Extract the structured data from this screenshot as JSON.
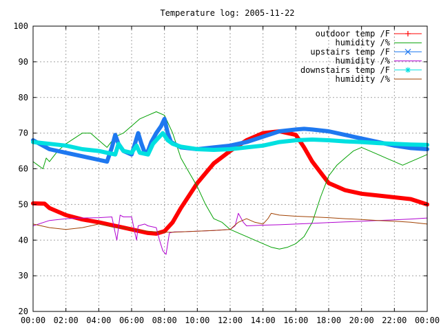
{
  "chart_data": {
    "type": "line",
    "title": "Temperature log: 2005-11-22",
    "xlabel": "",
    "ylabel": "",
    "x_unit": "hour",
    "xlim": [
      0,
      24
    ],
    "ylim": [
      20,
      100
    ],
    "grid": true,
    "legend_position": "top-right",
    "x_ticks": [
      0,
      2,
      4,
      6,
      8,
      10,
      12,
      14,
      16,
      18,
      20,
      22,
      24
    ],
    "x_tick_labels": [
      "00:00",
      "02:00",
      "04:00",
      "06:00",
      "08:00",
      "10:00",
      "12:00",
      "14:00",
      "16:00",
      "18:00",
      "20:00",
      "22:00",
      "00:00"
    ],
    "y_ticks": [
      20,
      30,
      40,
      50,
      60,
      70,
      80,
      90,
      100
    ],
    "y_tick_labels": [
      "20",
      "30",
      "40",
      "50",
      "60",
      "70",
      "80",
      "90",
      "100"
    ],
    "series": [
      {
        "name": "outdoor temp /F",
        "color": "#ff0000",
        "style": "thick-line",
        "marker": "plus",
        "x": [
          0,
          0.7,
          1,
          2,
          3,
          4,
          4.5,
          5,
          5.5,
          6,
          6.5,
          7,
          7.5,
          8,
          8.5,
          9,
          10,
          11,
          12,
          12.5,
          13,
          14,
          15,
          16,
          16.5,
          17,
          17.5,
          18,
          19,
          20,
          21,
          22,
          23,
          24
        ],
        "y": [
          50.3,
          50.2,
          49,
          47,
          45.8,
          45,
          44.5,
          44,
          43.5,
          43,
          42.5,
          42,
          41.8,
          42.5,
          45,
          49,
          56,
          61.5,
          65,
          66.5,
          68,
          70,
          70.5,
          69.5,
          66,
          62,
          59,
          56,
          54,
          53,
          52.5,
          52,
          51.5,
          50
        ]
      },
      {
        "name": "humidity /%",
        "color": "#00a000",
        "style": "line",
        "x": [
          0,
          0.3,
          0.6,
          0.8,
          1,
          1.5,
          2,
          3,
          3.5,
          4,
          4.5,
          5,
          5.5,
          6,
          6.5,
          7,
          7.5,
          8,
          8.5,
          9,
          9.5,
          10,
          10.5,
          11,
          11.5,
          12,
          12.5,
          13,
          13.5,
          14,
          14.5,
          15,
          15.5,
          16,
          16.5,
          17,
          17.5,
          18,
          18.5,
          19,
          19.5,
          20,
          20.5,
          21,
          21.5,
          22,
          22.5,
          23,
          23.5,
          24
        ],
        "y": [
          62,
          61,
          60,
          63,
          62,
          65,
          67,
          70,
          70,
          68,
          66,
          69,
          70,
          72,
          74,
          75,
          76,
          75,
          70,
          63,
          59,
          55,
          50,
          46,
          45,
          43,
          42,
          41,
          40,
          39,
          38,
          37.5,
          38,
          39,
          41,
          45,
          52,
          58,
          61,
          63,
          65,
          66,
          65,
          64,
          63,
          62,
          61,
          62,
          63,
          64
        ]
      },
      {
        "name": "upstairs temp /F",
        "color": "#1e78f0",
        "style": "thick-line",
        "marker": "x",
        "x": [
          0,
          1,
          2,
          3,
          4,
          4.5,
          4.8,
          5,
          5.2,
          5.5,
          6,
          6.2,
          6.4,
          6.6,
          6.8,
          7,
          7.2,
          7.5,
          7.8,
          8,
          8.2,
          8.4,
          8.8,
          9,
          10,
          11,
          12,
          12.5,
          13,
          14,
          15,
          16,
          16.5,
          17,
          18,
          19,
          20,
          21,
          22,
          23,
          24
        ],
        "y": [
          68,
          65.5,
          64.5,
          63.5,
          62.5,
          62,
          66,
          69.5,
          67,
          65,
          64,
          67,
          70,
          67,
          64.5,
          65,
          67.5,
          70,
          72,
          74,
          70,
          67.5,
          66.5,
          66,
          65.5,
          66,
          66.5,
          67,
          67.5,
          69,
          70.5,
          71,
          71.2,
          71,
          70.5,
          69.5,
          68.5,
          67.5,
          66.5,
          65.8,
          65.5
        ]
      },
      {
        "name": "humidity /%",
        "color": "#b000d0",
        "style": "line",
        "x": [
          0,
          1,
          2,
          3,
          4,
          4.8,
          5,
          5.1,
          5.3,
          5.5,
          6,
          6.2,
          6.3,
          6.4,
          6.8,
          7,
          7.5,
          7.7,
          7.9,
          8.1,
          8.3,
          8.6,
          9,
          10,
          11,
          12,
          12.3,
          12.5,
          12.8,
          13,
          14,
          15,
          16,
          17,
          18,
          19,
          20,
          21,
          22,
          23,
          24
        ],
        "y": [
          44,
          45.5,
          46,
          46.2,
          46.3,
          46.5,
          42,
          40,
          47,
          46.5,
          46.5,
          42,
          40,
          44,
          44.5,
          44,
          43.5,
          40,
          37,
          36,
          42,
          42.3,
          42.3,
          42.5,
          42.7,
          43,
          44,
          47.5,
          45,
          44,
          44.2,
          44.3,
          44.5,
          44.7,
          44.9,
          45.1,
          45.3,
          45.5,
          45.7,
          45.9,
          46.2
        ]
      },
      {
        "name": "downstairs temp /F",
        "color": "#00e0e0",
        "style": "thick-line",
        "marker": "star",
        "x": [
          0,
          1,
          2,
          3,
          4,
          4.5,
          5,
          5.2,
          5.5,
          6,
          6.3,
          6.5,
          7,
          7.3,
          7.6,
          7.9,
          8.2,
          8.5,
          9,
          10,
          11,
          12,
          13,
          14,
          15,
          16,
          17,
          18,
          19,
          20,
          21,
          22,
          23,
          24
        ],
        "y": [
          67.5,
          67,
          66.5,
          65.5,
          65,
          64.5,
          64,
          67,
          65,
          64.5,
          66.5,
          64.5,
          64,
          67,
          68.5,
          70,
          68,
          67,
          66.2,
          65.5,
          65.3,
          65.5,
          66,
          66.5,
          67.5,
          68,
          68.2,
          68,
          67.7,
          67.5,
          67.2,
          67,
          66.8,
          66.7
        ]
      },
      {
        "name": "humidity /%",
        "color": "#a04000",
        "style": "line",
        "x": [
          0,
          0.5,
          1,
          2,
          3,
          3.5,
          4,
          4.5,
          5,
          5.5,
          6,
          7,
          7.5,
          8,
          8.5,
          9,
          10,
          11,
          12,
          12.5,
          13,
          13.5,
          14,
          14.3,
          14.5,
          15,
          16,
          17,
          18,
          19,
          20,
          21,
          22,
          23,
          24
        ],
        "y": [
          44.5,
          44,
          43.5,
          43,
          43.5,
          44,
          44.5,
          44,
          43.5,
          43.5,
          43,
          42.5,
          42.3,
          42.2,
          42.2,
          42.3,
          42.5,
          42.7,
          43,
          45,
          46,
          45,
          44.5,
          46,
          47.5,
          47,
          46.7,
          46.5,
          46.3,
          46,
          45.8,
          45.5,
          45.3,
          45,
          44.5
        ]
      }
    ]
  }
}
